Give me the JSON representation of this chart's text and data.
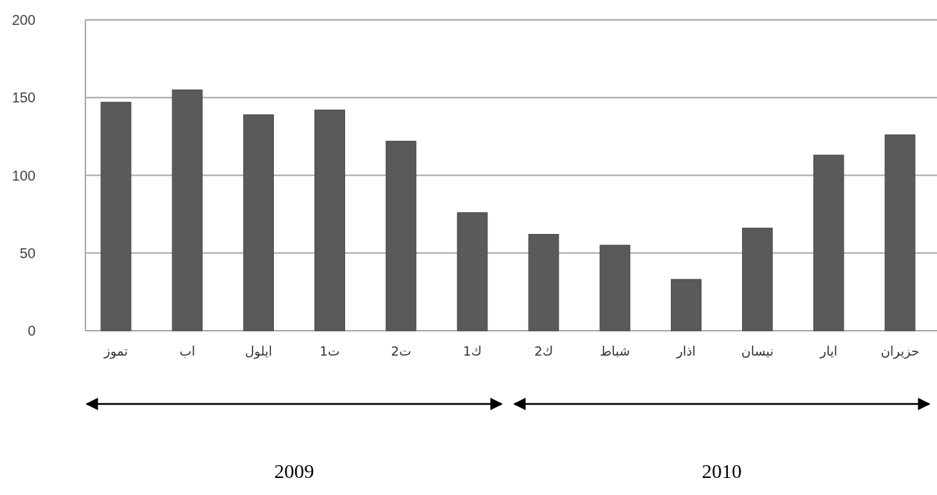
{
  "chart_data": {
    "type": "bar",
    "categories": [
      "تموز",
      "اب",
      "ايلول",
      "ت1",
      "ت2",
      "ك1",
      "ك2",
      "شباط",
      "اذار",
      "نيسان",
      "ايار",
      "حزيران"
    ],
    "values": [
      147,
      155,
      139,
      142,
      122,
      76,
      62,
      55,
      33,
      66,
      113,
      126
    ],
    "color": "#5a5a5a",
    "ylim": [
      0,
      200
    ],
    "yticks": [
      0,
      50,
      100,
      150,
      200
    ],
    "grid": "y",
    "annotations": [
      "2009",
      "2010"
    ]
  }
}
